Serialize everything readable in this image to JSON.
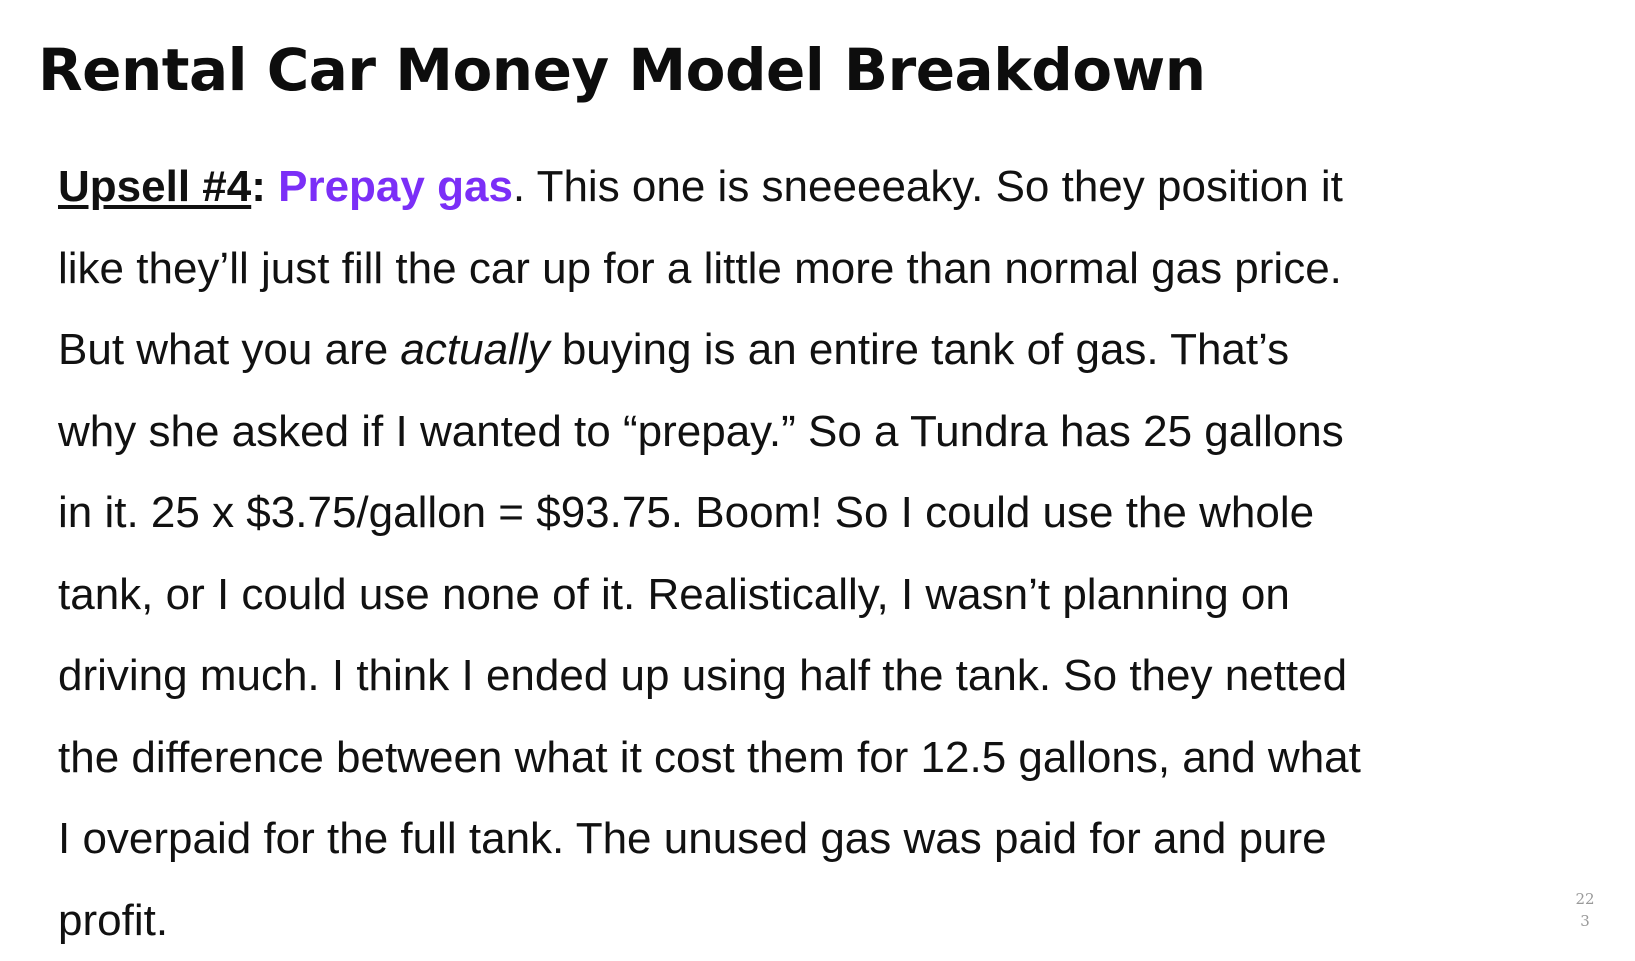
{
  "slide": {
    "title": "Rental Car Money Model Breakdown",
    "lines": [
      {
        "label": "Upsell #4",
        "colon": ":",
        "highlight": "Prepay gas",
        "rest": ". This one is sneeeeaky. So they position it"
      },
      {
        "text": "like they’ll just fill the car up for  a little more than normal gas price."
      },
      {
        "before": "But what you are ",
        "emphasis": "actually",
        "after": " buying is an entire tank of gas. That’s"
      },
      {
        "text": "why she asked if I wanted to “prepay.” So a Tundra has 25 gallons"
      },
      {
        "text": "in it. 25 x $3.75/gallon = $93.75. Boom! So I could use the whole"
      },
      {
        "text": "tank, or I could use none of it. Realistically, I wasn’t planning on"
      },
      {
        "text": "driving much. I think I ended up using half the tank. So they netted"
      },
      {
        "text": "the difference between what it cost them for 12.5 gallons, and what"
      },
      {
        "text": "I overpaid for the full tank. The unused gas was paid for and pure"
      },
      {
        "text": "profit."
      }
    ],
    "page_number": "22\n3",
    "colors": {
      "highlight": "#7b2ff7",
      "text": "#111111",
      "background": "#ffffff"
    }
  }
}
